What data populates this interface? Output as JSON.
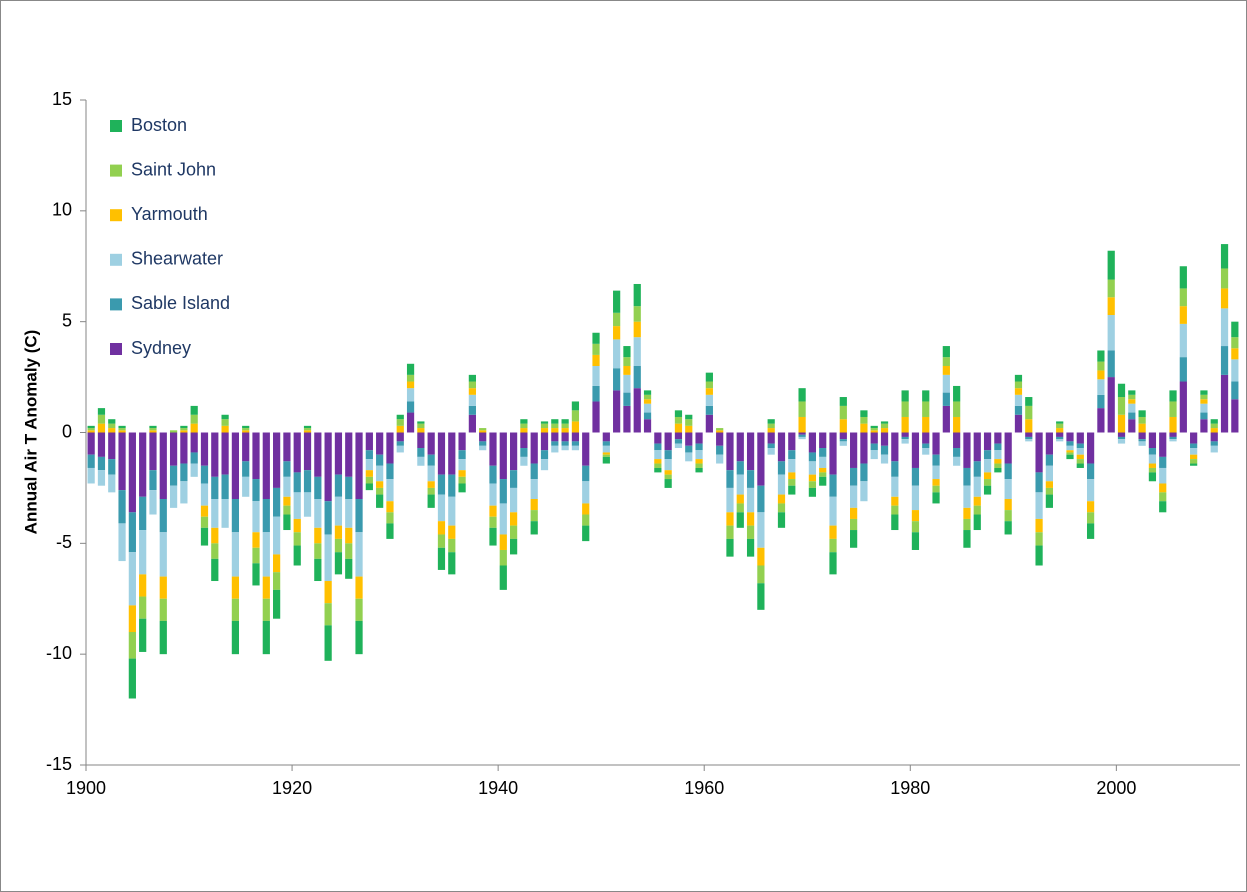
{
  "chart_data": {
    "type": "bar",
    "stacked": true,
    "ylabel": "Annual Air T Anomaly (C)",
    "legend": "upper left",
    "ylim": [
      -15,
      15
    ],
    "yticks": [
      -15,
      -10,
      -5,
      0,
      5,
      10,
      15
    ],
    "xlim": [
      1900,
      2012
    ],
    "xticks": [
      1900,
      1920,
      1940,
      1960,
      1980,
      2000
    ],
    "x": [
      1900,
      1901,
      1902,
      1903,
      1904,
      1905,
      1906,
      1907,
      1908,
      1909,
      1910,
      1911,
      1912,
      1913,
      1914,
      1915,
      1916,
      1917,
      1918,
      1919,
      1920,
      1921,
      1922,
      1923,
      1924,
      1925,
      1926,
      1927,
      1928,
      1929,
      1930,
      1931,
      1932,
      1933,
      1934,
      1935,
      1936,
      1937,
      1938,
      1939,
      1940,
      1941,
      1942,
      1943,
      1944,
      1945,
      1946,
      1947,
      1948,
      1949,
      1950,
      1951,
      1952,
      1953,
      1954,
      1955,
      1956,
      1957,
      1958,
      1959,
      1960,
      1961,
      1962,
      1963,
      1964,
      1965,
      1966,
      1967,
      1968,
      1969,
      1970,
      1971,
      1972,
      1973,
      1974,
      1975,
      1976,
      1977,
      1978,
      1979,
      1980,
      1981,
      1982,
      1983,
      1984,
      1985,
      1986,
      1987,
      1988,
      1989,
      1990,
      1991,
      1992,
      1993,
      1994,
      1995,
      1996,
      1997,
      1998,
      1999,
      2000,
      2001,
      2002,
      2003,
      2004,
      2005,
      2006,
      2007,
      2008,
      2009,
      2010,
      2011
    ],
    "series": [
      {
        "name": "Boston",
        "color": "#1fb25a",
        "values": [
          0.1,
          0.3,
          0.2,
          0.1,
          -1.8,
          -1.5,
          0.1,
          -1.5,
          0.0,
          0.1,
          0.4,
          -0.8,
          -1.0,
          0.2,
          -1.5,
          0.1,
          -1.0,
          -1.5,
          -1.3,
          -0.7,
          -0.9,
          0.1,
          -1.0,
          -1.6,
          -1.0,
          -0.9,
          -1.5,
          -0.3,
          -0.6,
          -0.7,
          0.2,
          0.5,
          0.1,
          -0.6,
          -1.0,
          -1.0,
          -0.4,
          0.3,
          0.0,
          -0.8,
          -1.1,
          -0.7,
          0.2,
          -0.6,
          0.1,
          0.2,
          0.2,
          0.4,
          -0.7,
          0.5,
          -0.3,
          1.0,
          0.5,
          1.0,
          0.2,
          -0.2,
          -0.4,
          0.3,
          0.2,
          -0.2,
          0.4,
          0.0,
          -0.8,
          -0.7,
          -0.8,
          -1.2,
          0.2,
          -0.7,
          -0.4,
          0.6,
          -0.4,
          -0.4,
          -1.0,
          0.4,
          -0.8,
          0.3,
          0.1,
          0.1,
          -0.7,
          0.5,
          -0.8,
          0.5,
          -0.5,
          0.5,
          0.7,
          -0.8,
          -0.7,
          -0.4,
          -0.2,
          -0.6,
          0.3,
          0.4,
          -0.9,
          -0.6,
          0.1,
          -0.2,
          -0.2,
          -0.7,
          0.5,
          1.3,
          0.6,
          0.2,
          0.3,
          -0.4,
          -0.5,
          0.5,
          1.0,
          -0.1,
          0.2,
          0.2,
          1.1,
          0.7
        ]
      },
      {
        "name": "Saint John",
        "color": "#92d050",
        "values": [
          0.1,
          0.4,
          0.2,
          0.1,
          -1.2,
          -1.0,
          0.1,
          -1.0,
          0.1,
          0.1,
          0.4,
          -0.5,
          -0.7,
          0.3,
          -1.0,
          0.1,
          -0.7,
          -1.0,
          -0.8,
          -0.4,
          -0.6,
          0.1,
          -0.7,
          -1.0,
          -0.6,
          -0.7,
          -1.0,
          -0.3,
          -0.3,
          -0.5,
          0.3,
          0.3,
          0.2,
          -0.3,
          -0.6,
          -0.6,
          -0.3,
          0.3,
          0.1,
          -0.5,
          -0.7,
          -0.6,
          0.2,
          -0.5,
          0.2,
          0.2,
          0.2,
          0.5,
          -0.5,
          0.5,
          -0.1,
          0.6,
          0.4,
          0.7,
          0.2,
          -0.2,
          -0.2,
          0.3,
          0.3,
          -0.2,
          0.3,
          0.1,
          -0.6,
          -0.4,
          -0.6,
          -0.8,
          0.2,
          -0.4,
          -0.3,
          0.7,
          -0.3,
          -0.2,
          -0.6,
          0.6,
          -0.5,
          0.3,
          0.1,
          0.2,
          -0.4,
          0.7,
          -0.5,
          0.7,
          -0.3,
          0.4,
          0.7,
          -0.5,
          -0.4,
          -0.3,
          -0.2,
          -0.5,
          0.3,
          0.6,
          -0.6,
          -0.3,
          0.2,
          -0.1,
          -0.2,
          -0.5,
          0.4,
          0.8,
          0.8,
          0.2,
          0.3,
          -0.2,
          -0.4,
          0.7,
          0.8,
          -0.2,
          0.2,
          0.2,
          0.9,
          0.5
        ]
      },
      {
        "name": "Yarmouth",
        "color": "#ffc000",
        "values": [
          0.1,
          0.4,
          0.2,
          0.1,
          -1.2,
          -1.0,
          0.1,
          -1.0,
          0.0,
          0.1,
          0.4,
          -0.5,
          -0.7,
          0.3,
          -1.0,
          0.1,
          -0.7,
          -1.0,
          -0.8,
          -0.4,
          -0.6,
          0.1,
          -0.7,
          -1.0,
          -0.6,
          -0.7,
          -1.0,
          -0.3,
          -0.3,
          -0.5,
          0.3,
          0.3,
          0.2,
          -0.3,
          -0.6,
          -0.6,
          -0.3,
          0.3,
          0.1,
          -0.5,
          -0.7,
          -0.6,
          0.2,
          -0.5,
          0.2,
          0.2,
          0.2,
          0.5,
          -0.5,
          0.5,
          -0.1,
          0.6,
          0.4,
          0.7,
          0.2,
          -0.2,
          -0.2,
          0.4,
          0.3,
          -0.2,
          0.3,
          0.1,
          -0.6,
          -0.4,
          -0.6,
          -0.8,
          0.2,
          -0.4,
          -0.3,
          0.7,
          -0.3,
          -0.2,
          -0.6,
          0.6,
          -0.5,
          0.4,
          0.1,
          0.2,
          -0.4,
          0.7,
          -0.5,
          0.7,
          -0.3,
          0.4,
          0.7,
          -0.5,
          -0.4,
          -0.3,
          -0.2,
          -0.5,
          0.3,
          0.6,
          -0.6,
          -0.3,
          0.2,
          -0.1,
          -0.2,
          -0.5,
          0.4,
          0.8,
          0.8,
          0.2,
          0.4,
          -0.2,
          -0.4,
          0.7,
          0.8,
          -0.2,
          0.2,
          0.2,
          0.9,
          0.5
        ]
      },
      {
        "name": "Shearwater",
        "color": "#9ed0e2",
        "values": [
          -0.7,
          -0.7,
          -0.8,
          -1.7,
          -2.4,
          -2.0,
          -1.1,
          -2.0,
          -1.0,
          -1.0,
          -0.6,
          -1.0,
          -1.3,
          -1.3,
          -2.0,
          -0.9,
          -1.4,
          -2.0,
          -1.7,
          -0.9,
          -1.2,
          -1.1,
          -1.3,
          -2.1,
          -1.3,
          -1.3,
          -2.0,
          -0.5,
          -0.7,
          -1.0,
          -0.3,
          0.6,
          -0.4,
          -0.7,
          -1.2,
          -1.3,
          -0.5,
          0.5,
          -0.2,
          -1.0,
          -1.4,
          -1.1,
          -0.4,
          -0.9,
          -0.5,
          -0.3,
          -0.2,
          -0.2,
          -1.0,
          0.9,
          -0.3,
          1.3,
          0.8,
          1.3,
          0.4,
          -0.4,
          -0.5,
          -0.2,
          -0.4,
          -0.4,
          0.5,
          -0.4,
          -1.1,
          -0.9,
          -1.1,
          -1.6,
          -0.3,
          -0.9,
          -0.6,
          -0.1,
          -0.6,
          -0.5,
          -1.3,
          -0.2,
          -1.0,
          -0.9,
          -0.4,
          -0.4,
          -0.9,
          -0.2,
          -1.1,
          -0.3,
          -0.6,
          0.8,
          -0.4,
          -1.0,
          -0.9,
          -0.6,
          -0.4,
          -0.9,
          0.5,
          -0.1,
          -1.2,
          -0.7,
          -0.1,
          -0.2,
          -0.3,
          -1.0,
          0.7,
          1.6,
          -0.2,
          0.4,
          -0.2,
          -0.4,
          -0.7,
          -0.1,
          1.5,
          -0.3,
          0.4,
          -0.3,
          1.7,
          1.0
        ]
      },
      {
        "name": "Sable Island",
        "color": "#3a9aae",
        "values": [
          -0.6,
          -0.6,
          -0.7,
          -1.5,
          -1.8,
          -1.5,
          -0.9,
          -1.5,
          -0.9,
          -0.8,
          -0.5,
          -0.8,
          -1.0,
          -1.1,
          -1.5,
          -0.7,
          -1.0,
          -1.5,
          -1.3,
          -0.7,
          -0.9,
          -1.0,
          -1.0,
          -1.5,
          -1.0,
          -1.0,
          -1.5,
          -0.4,
          -0.5,
          -0.7,
          -0.2,
          0.5,
          -0.4,
          -0.5,
          -0.9,
          -1.0,
          -0.4,
          0.4,
          -0.2,
          -0.8,
          -1.1,
          -0.8,
          -0.4,
          -0.7,
          -0.4,
          -0.2,
          -0.2,
          -0.2,
          -0.7,
          0.7,
          -0.2,
          1.0,
          0.6,
          1.0,
          0.3,
          -0.3,
          -0.4,
          -0.2,
          -0.3,
          -0.3,
          0.4,
          -0.4,
          -0.8,
          -0.6,
          -0.8,
          -1.2,
          -0.2,
          -0.6,
          -0.4,
          -0.1,
          -0.4,
          -0.4,
          -1.0,
          -0.1,
          -0.8,
          -0.8,
          -0.3,
          -0.4,
          -0.7,
          -0.1,
          -0.8,
          -0.2,
          -0.5,
          0.6,
          -0.4,
          -0.8,
          -0.7,
          -0.4,
          -0.3,
          -0.7,
          0.4,
          -0.1,
          -0.9,
          -0.5,
          -0.1,
          -0.2,
          -0.2,
          -0.7,
          0.6,
          1.2,
          -0.1,
          0.3,
          -0.1,
          -0.3,
          -0.5,
          -0.1,
          1.1,
          -0.2,
          0.3,
          -0.2,
          1.3,
          0.8
        ]
      },
      {
        "name": "Sydney",
        "color": "#7030a0",
        "values": [
          -1.0,
          -1.1,
          -1.2,
          -2.6,
          -3.6,
          -2.9,
          -1.7,
          -3.0,
          -1.5,
          -1.4,
          -0.9,
          -1.5,
          -2.0,
          -1.9,
          -3.0,
          -1.3,
          -2.1,
          -3.0,
          -2.5,
          -1.3,
          -1.8,
          -1.7,
          -2.0,
          -3.1,
          -1.9,
          -2.0,
          -3.0,
          -0.8,
          -1.0,
          -1.4,
          -0.4,
          0.9,
          -0.7,
          -1.0,
          -1.9,
          -1.9,
          -0.8,
          0.8,
          -0.4,
          -1.5,
          -2.1,
          -1.7,
          -0.7,
          -1.4,
          -0.8,
          -0.4,
          -0.4,
          -0.4,
          -1.5,
          1.4,
          -0.4,
          1.9,
          1.2,
          2.0,
          0.6,
          -0.5,
          -0.8,
          -0.3,
          -0.6,
          -0.5,
          0.8,
          -0.6,
          -1.7,
          -1.3,
          -1.7,
          -2.4,
          -0.5,
          -1.3,
          -0.8,
          -0.1,
          -0.9,
          -0.7,
          -1.9,
          -0.3,
          -1.6,
          -1.4,
          -0.5,
          -0.6,
          -1.3,
          -0.2,
          -1.6,
          -0.5,
          -1.0,
          1.2,
          -0.7,
          -1.6,
          -1.3,
          -0.8,
          -0.5,
          -1.4,
          0.8,
          -0.2,
          -1.8,
          -1.0,
          -0.2,
          -0.4,
          -0.5,
          -1.4,
          1.1,
          2.5,
          -0.2,
          0.6,
          -0.3,
          -0.7,
          -1.1,
          -0.2,
          2.3,
          -0.5,
          0.6,
          -0.4,
          2.6,
          1.5
        ]
      }
    ]
  }
}
